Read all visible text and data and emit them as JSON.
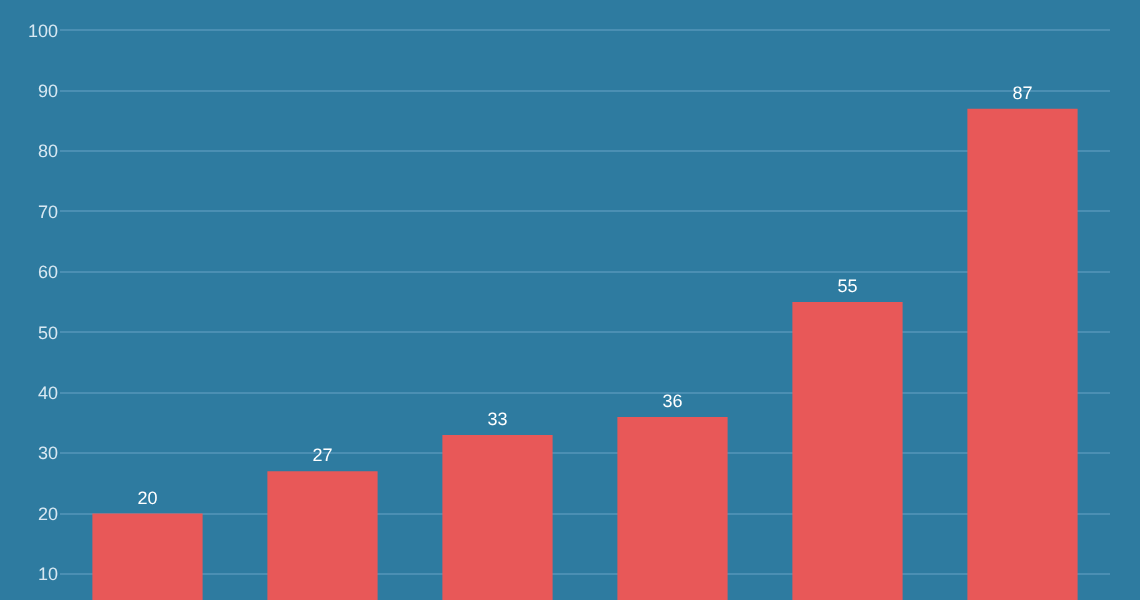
{
  "chart_data": {
    "type": "bar",
    "categories": [
      null,
      null,
      null,
      null,
      null,
      null
    ],
    "values": [
      20,
      27,
      33,
      36,
      55,
      87
    ],
    "color": "#e85858",
    "ylim": [
      5.7,
      105
    ],
    "yticks": [
      10,
      20,
      30,
      40,
      50,
      60,
      70,
      80,
      90,
      100
    ],
    "grid": "y",
    "data_labels": true,
    "tick_labels": "y"
  }
}
